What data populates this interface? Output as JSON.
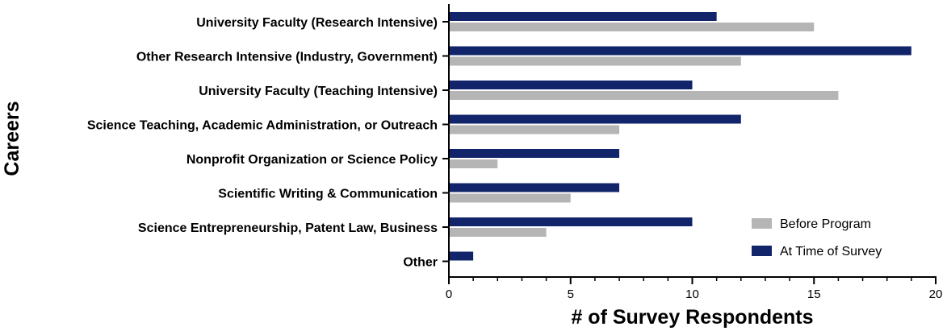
{
  "chart_data": {
    "type": "bar",
    "orientation": "horizontal",
    "categories": [
      "University Faculty (Research Intensive)",
      "Other Research Intensive (Industry, Government)",
      "University Faculty (Teaching Intensive)",
      "Science Teaching, Academic Administration, or Outreach",
      "Nonprofit Organization or Science Policy",
      "Scientific Writing & Communication",
      "Science Entrepreneurship, Patent Law, Business",
      "Other"
    ],
    "series": [
      {
        "name": "At Time of Survey",
        "color": "#12256b",
        "values": [
          11,
          19,
          10,
          12,
          7,
          7,
          10,
          1
        ]
      },
      {
        "name": "Before Program",
        "color": "#b5b5b5",
        "values": [
          15,
          12,
          16,
          7,
          2,
          5,
          4,
          0
        ]
      }
    ],
    "legend_order": [
      "Before Program",
      "At Time of Survey"
    ],
    "legend_position": "bottom-right",
    "xlabel": "# of Survey Respondents",
    "ylabel": "Careers",
    "xlim": [
      0,
      20
    ],
    "xticks": [
      0,
      5,
      10,
      15,
      20
    ],
    "grid": false
  }
}
